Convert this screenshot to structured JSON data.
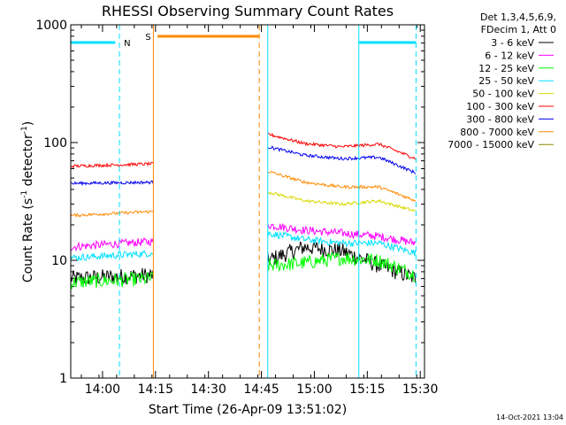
{
  "chart_data": {
    "type": "line",
    "title": "RHESSI Observing Summary Count Rates",
    "xlabel": "Start Time (26-Apr-09 13:51:02)",
    "ylabel_main": "Count Rate (s",
    "ylabel_sup1": "-1",
    "ylabel_mid": " detector",
    "ylabel_sup2": "-1",
    "ylabel_end": ")",
    "footer_date": "14-Oct-2021 13:04",
    "y_scale": "log",
    "ylim": [
      1,
      1000
    ],
    "xlim": [
      13.85,
      15.52
    ],
    "x_ticks": [
      {
        "v": 14.0,
        "label": "14:00"
      },
      {
        "v": 14.25,
        "label": "14:15"
      },
      {
        "v": 14.5,
        "label": "14:30"
      },
      {
        "v": 14.75,
        "label": "14:45"
      },
      {
        "v": 15.0,
        "label": "15:00"
      },
      {
        "v": 15.25,
        "label": "15:15"
      },
      {
        "v": 15.5,
        "label": "15:30"
      }
    ],
    "y_ticks": [
      {
        "v": 1,
        "label": "1"
      },
      {
        "v": 10,
        "label": "10"
      },
      {
        "v": 100,
        "label": "100"
      },
      {
        "v": 1000,
        "label": "1000"
      }
    ],
    "legend": {
      "header1": "Det 1,3,4,5,6,9,",
      "header2": "FDecim 1, Att 0",
      "placement": "right"
    },
    "series": [
      {
        "name": "3 - 6 keV",
        "color": "#000000",
        "seg1": [
          7.0,
          7.5
        ],
        "seg2": [
          10,
          13,
          12,
          9,
          7
        ]
      },
      {
        "name": "6 - 12 keV",
        "color": "#ff00ff",
        "seg1": [
          13,
          14.5
        ],
        "seg2": [
          20,
          18,
          17,
          16,
          14
        ]
      },
      {
        "name": "12 - 25 keV",
        "color": "#00ff00",
        "seg1": [
          6.5,
          7
        ],
        "seg2": [
          9,
          9.5,
          10.5,
          10,
          7.5
        ]
      },
      {
        "name": "25 - 50 keV",
        "color": "#00e0ff",
        "seg1": [
          10.5,
          11.5
        ],
        "seg2": [
          17,
          15,
          14,
          14,
          11.5
        ]
      },
      {
        "name": "50 - 100 keV",
        "color": "#d8d800",
        "seg1": [],
        "seg2": [
          38,
          32,
          30,
          32,
          26
        ]
      },
      {
        "name": "100 - 300 keV",
        "color": "#ff0000",
        "seg1": [
          63,
          66
        ],
        "seg2": [
          118,
          98,
          92,
          97,
          73
        ]
      },
      {
        "name": "300 - 800 keV",
        "color": "#0000ee",
        "seg1": [
          45,
          46
        ],
        "seg2": [
          92,
          78,
          73,
          75,
          55
        ]
      },
      {
        "name": "800 - 7000 keV",
        "color": "#ff8800",
        "seg1": [
          24,
          26
        ],
        "seg2": [
          57,
          46,
          42,
          42,
          32
        ]
      },
      {
        "name": "7000 - 15000 keV",
        "color": "#888800",
        "seg1": [],
        "seg2": []
      }
    ],
    "seg1_range": [
      13.85,
      14.24
    ],
    "seg2_range": [
      14.78,
      15.48
    ],
    "annotations": [
      {
        "type": "night",
        "label": "N",
        "solid_x": 13.85,
        "dashed_x": 14.08,
        "bar_from": 13.85,
        "bar_to": 14.06,
        "color": "#00e0ff"
      },
      {
        "type": "saa",
        "label": "S",
        "solid_x": 14.24,
        "dashed_x": 14.74,
        "bar_from": 14.26,
        "bar_to": 14.74,
        "color": "#ff8800"
      },
      {
        "type": "night",
        "label": "",
        "solid_x": 14.78,
        "dashed_x": null,
        "bar_from": null,
        "bar_to": null,
        "color": "#00e0ff"
      },
      {
        "type": "night",
        "label": "",
        "solid_x": 15.21,
        "dashed_x": 15.48,
        "bar_from": 15.21,
        "bar_to": 15.48,
        "color": "#00e0ff"
      }
    ]
  }
}
